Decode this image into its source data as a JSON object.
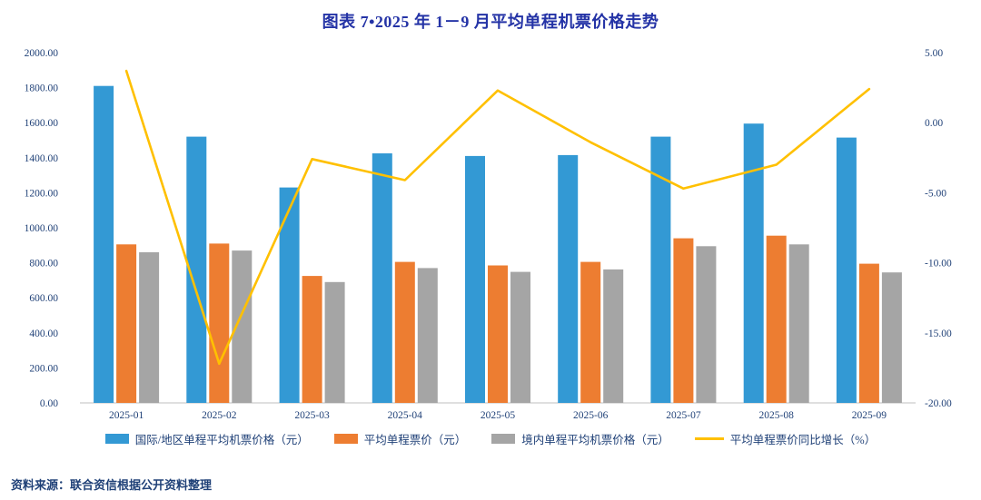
{
  "title": "图表 7•2025 年 1－9 月平均单程机票价格走势",
  "source": "资料来源：联合资信根据公开资料整理",
  "colors": {
    "title": "#2433A6",
    "axis_text": "#1F4077",
    "international": "#3399D4",
    "average": "#ED7D31",
    "domestic": "#A5A5A5",
    "growth_line": "#FFC000"
  },
  "chart_data": {
    "type": "bar",
    "subtype": "grouped bars with secondary-axis line",
    "title": "图表 7•2025 年 1－9 月平均单程机票价格走势",
    "categories": [
      "2025-01",
      "2025-02",
      "2025-03",
      "2025-04",
      "2025-05",
      "2025-06",
      "2025-07",
      "2025-08",
      "2025-09"
    ],
    "series": [
      {
        "name": "国际/地区单程平均机票价格（元）",
        "type": "bar",
        "axis": "left",
        "color_key": "international",
        "values": [
          1810,
          1520,
          1230,
          1425,
          1410,
          1415,
          1520,
          1595,
          1515
        ]
      },
      {
        "name": "平均单程票价（元）",
        "type": "bar",
        "axis": "left",
        "color_key": "average",
        "values": [
          905,
          910,
          725,
          805,
          785,
          805,
          940,
          955,
          795
        ]
      },
      {
        "name": "境内单程平均机票价格（元）",
        "type": "bar",
        "axis": "left",
        "color_key": "domestic",
        "values": [
          860,
          870,
          690,
          770,
          748,
          762,
          895,
          905,
          745
        ]
      },
      {
        "name": "平均单程票价同比增长（%）",
        "type": "line",
        "axis": "right",
        "color_key": "growth_line",
        "values": [
          3.7,
          -17.2,
          -2.6,
          -4.1,
          2.3,
          -1.4,
          -4.7,
          -3.0,
          2.4
        ]
      }
    ],
    "left_axis": {
      "min": 0,
      "max": 2000,
      "step": 200,
      "tick_format": "0.00"
    },
    "right_axis": {
      "min": -20,
      "max": 5,
      "step": 5,
      "tick_format": "0.00"
    },
    "grid": false,
    "legend_position": "bottom"
  }
}
